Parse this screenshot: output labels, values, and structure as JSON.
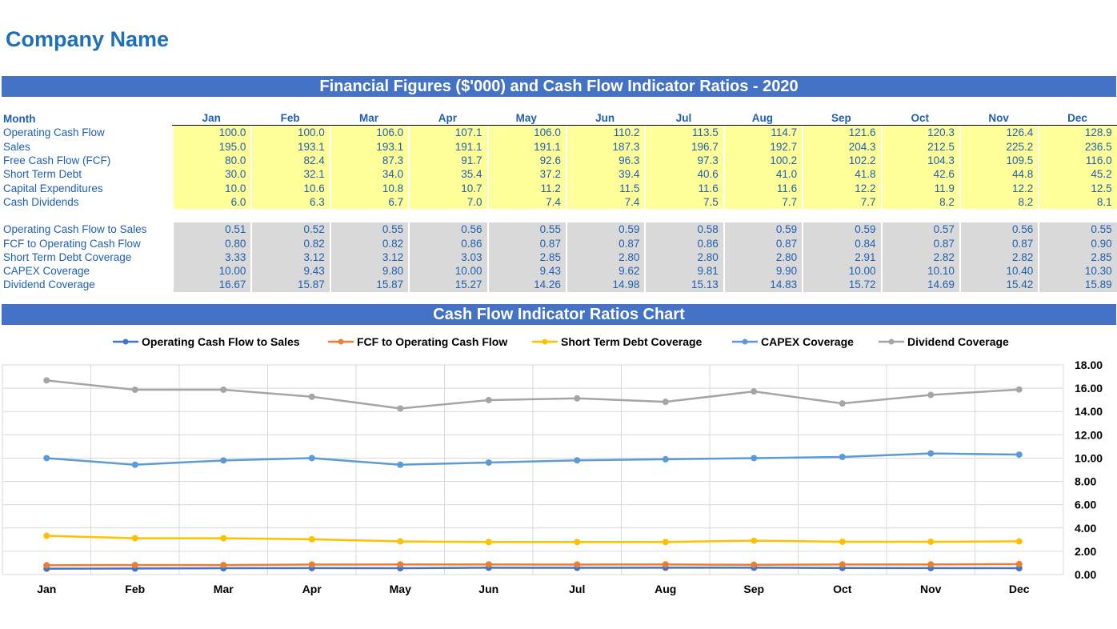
{
  "company": "Company Name",
  "table_title": "Financial Figures ($'000) and Cash Flow Indicator Ratios - 2020",
  "chart_title": "Cash Flow Indicator Ratios Chart",
  "month_label": "Month",
  "months": [
    "Jan",
    "Feb",
    "Mar",
    "Apr",
    "May",
    "Jun",
    "Jul",
    "Aug",
    "Sep",
    "Oct",
    "Nov",
    "Dec"
  ],
  "figures": [
    {
      "label": "Operating Cash Flow",
      "values": [
        "100.0",
        "100.0",
        "106.0",
        "107.1",
        "106.0",
        "110.2",
        "113.5",
        "114.7",
        "121.6",
        "120.3",
        "126.4",
        "128.9"
      ]
    },
    {
      "label": "Sales",
      "values": [
        "195.0",
        "193.1",
        "193.1",
        "191.1",
        "191.1",
        "187.3",
        "196.7",
        "192.7",
        "204.3",
        "212.5",
        "225.2",
        "236.5"
      ]
    },
    {
      "label": "Free Cash Flow (FCF)",
      "values": [
        "80.0",
        "82.4",
        "87.3",
        "91.7",
        "92.6",
        "96.3",
        "97.3",
        "100.2",
        "102.2",
        "104.3",
        "109.5",
        "116.0"
      ]
    },
    {
      "label": "Short Term Debt",
      "values": [
        "30.0",
        "32.1",
        "34.0",
        "35.4",
        "37.2",
        "39.4",
        "40.6",
        "41.0",
        "41.8",
        "42.6",
        "44.8",
        "45.2"
      ]
    },
    {
      "label": "Capital Expenditures",
      "values": [
        "10.0",
        "10.6",
        "10.8",
        "10.7",
        "11.2",
        "11.5",
        "11.6",
        "11.6",
        "12.2",
        "11.9",
        "12.2",
        "12.5"
      ]
    },
    {
      "label": "Cash Dividends",
      "values": [
        "6.0",
        "6.3",
        "6.7",
        "7.0",
        "7.4",
        "7.4",
        "7.5",
        "7.7",
        "7.7",
        "8.2",
        "8.2",
        "8.1"
      ]
    }
  ],
  "ratios": [
    {
      "label": "Operating Cash Flow to Sales",
      "values": [
        "0.51",
        "0.52",
        "0.55",
        "0.56",
        "0.55",
        "0.59",
        "0.58",
        "0.59",
        "0.59",
        "0.57",
        "0.56",
        "0.55"
      ]
    },
    {
      "label": "FCF to Operating Cash Flow",
      "values": [
        "0.80",
        "0.82",
        "0.82",
        "0.86",
        "0.87",
        "0.87",
        "0.86",
        "0.87",
        "0.84",
        "0.87",
        "0.87",
        "0.90"
      ]
    },
    {
      "label": "Short Term Debt Coverage",
      "values": [
        "3.33",
        "3.12",
        "3.12",
        "3.03",
        "2.85",
        "2.80",
        "2.80",
        "2.80",
        "2.91",
        "2.82",
        "2.82",
        "2.85"
      ]
    },
    {
      "label": "CAPEX Coverage",
      "values": [
        "10.00",
        "9.43",
        "9.80",
        "10.00",
        "9.43",
        "9.62",
        "9.81",
        "9.90",
        "10.00",
        "10.10",
        "10.40",
        "10.30"
      ]
    },
    {
      "label": "Dividend Coverage",
      "values": [
        "16.67",
        "15.87",
        "15.87",
        "15.27",
        "14.26",
        "14.98",
        "15.13",
        "14.83",
        "15.72",
        "14.69",
        "15.42",
        "15.89"
      ]
    }
  ],
  "chart_data": {
    "type": "line",
    "title": "Cash Flow Indicator Ratios Chart",
    "categories": [
      "Jan",
      "Feb",
      "Mar",
      "Apr",
      "May",
      "Jun",
      "Jul",
      "Aug",
      "Sep",
      "Oct",
      "Nov",
      "Dec"
    ],
    "ylim": [
      0,
      18
    ],
    "yticks": [
      "0.00",
      "2.00",
      "4.00",
      "6.00",
      "8.00",
      "10.00",
      "12.00",
      "14.00",
      "16.00",
      "18.00"
    ],
    "grid": true,
    "legend": "top",
    "series": [
      {
        "name": "Operating Cash Flow to Sales",
        "color": "#4472c4",
        "values": [
          0.51,
          0.52,
          0.55,
          0.56,
          0.55,
          0.59,
          0.58,
          0.59,
          0.59,
          0.57,
          0.56,
          0.55
        ]
      },
      {
        "name": "FCF to Operating Cash Flow",
        "color": "#ed7d31",
        "values": [
          0.8,
          0.82,
          0.82,
          0.86,
          0.87,
          0.87,
          0.86,
          0.87,
          0.84,
          0.87,
          0.87,
          0.9
        ]
      },
      {
        "name": "Short Term Debt Coverage",
        "color": "#ffc000",
        "values": [
          3.33,
          3.12,
          3.12,
          3.03,
          2.85,
          2.8,
          2.8,
          2.8,
          2.91,
          2.82,
          2.82,
          2.85
        ]
      },
      {
        "name": "CAPEX Coverage",
        "color": "#5b9bd5",
        "values": [
          10.0,
          9.43,
          9.8,
          10.0,
          9.43,
          9.62,
          9.81,
          9.9,
          10.0,
          10.1,
          10.4,
          10.3
        ]
      },
      {
        "name": "Dividend Coverage",
        "color": "#a5a5a5",
        "values": [
          16.67,
          15.87,
          15.87,
          15.27,
          14.26,
          14.98,
          15.13,
          14.83,
          15.72,
          14.69,
          15.42,
          15.89
        ]
      }
    ]
  }
}
